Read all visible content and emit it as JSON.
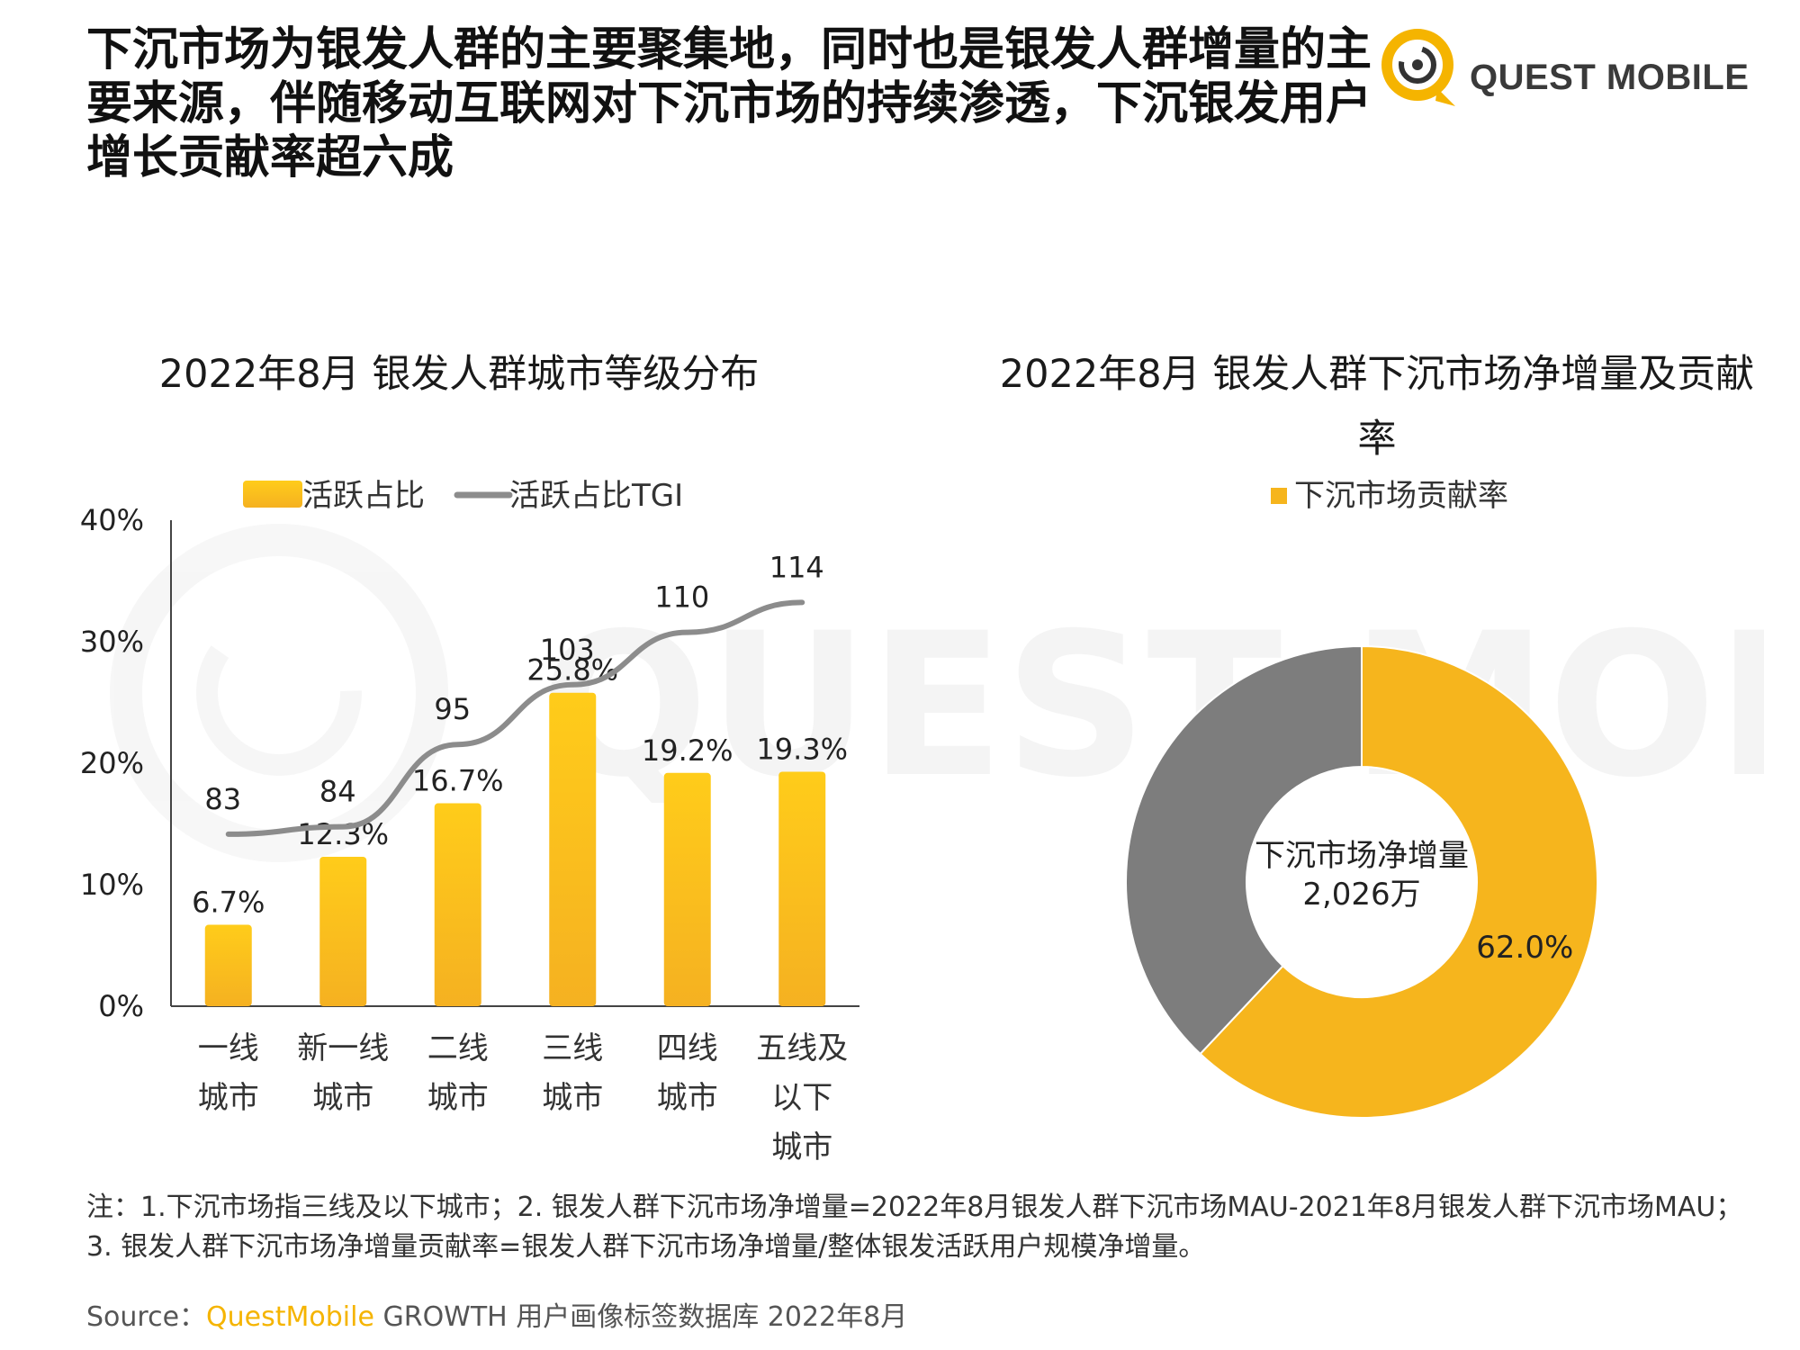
{
  "headline": "下沉市场为银发人群的主要聚集地，同时也是银发人群增量的主要来源，伴随移动互联网对下沉市场的持续渗透，下沉银发用户增长贡献率超六成",
  "logo": {
    "text": "QUEST MOBILE"
  },
  "watermark": {
    "text": "QUEST MOBILE"
  },
  "colors": {
    "bar_top": "#ffcc1a",
    "bar_bottom": "#f5b121",
    "line": "#8c8c8c",
    "donut_yellow": "#f6b51d",
    "donut_gray": "#7d7d7d",
    "axis": "#444444"
  },
  "chart_data": [
    {
      "type": "bar",
      "title": "2022年8月 银发人群城市等级分布",
      "categories": [
        [
          "一线",
          "城市"
        ],
        [
          "新一线",
          "城市"
        ],
        [
          "二线",
          "城市"
        ],
        [
          "三线",
          "城市"
        ],
        [
          "四线",
          "城市"
        ],
        [
          "五线及",
          "以下",
          "城市"
        ]
      ],
      "series": [
        {
          "name": "活跃占比",
          "type": "bar",
          "values": [
            6.7,
            12.3,
            16.7,
            25.8,
            19.2,
            19.3
          ],
          "labels": [
            "6.7%",
            "12.3%",
            "16.7%",
            "25.8%",
            "19.2%",
            "19.3%"
          ]
        },
        {
          "name": "活跃占比TGI",
          "type": "line",
          "values": [
            83,
            84,
            95,
            103,
            110,
            114
          ],
          "labels": [
            "83",
            "84",
            "95",
            "103",
            "110",
            "114"
          ]
        }
      ],
      "yticks": [
        "0%",
        "10%",
        "20%",
        "30%",
        "40%"
      ],
      "ylim": [
        0,
        40
      ],
      "legend_position": "top",
      "grid": false
    },
    {
      "type": "pie",
      "title": "2022年8月 银发人群下沉市场净增量及贡献率",
      "legend": [
        "下沉市场贡献率"
      ],
      "slices": [
        {
          "name": "下沉市场贡献率",
          "value": 62.0,
          "label": "62.0%"
        },
        {
          "name": "",
          "value": 38.0,
          "label": ""
        }
      ],
      "center_label": [
        "下沉市场净增量",
        "2,026万"
      ],
      "legend_position": "top"
    }
  ],
  "footnote": "注：1.下沉市场指三线及以下城市；2. 银发人群下沉市场净增量=2022年8月银发人群下沉市场MAU-2021年8月银发人群下沉市场MAU；3. 银发人群下沉市场净增量贡献率=银发人群下沉市场净增量/整体银发活跃用户规模净增量。",
  "source": {
    "label": "Source：",
    "brand": "QuestMobile",
    "rest": " GROWTH 用户画像标签数据库 2022年8月"
  }
}
